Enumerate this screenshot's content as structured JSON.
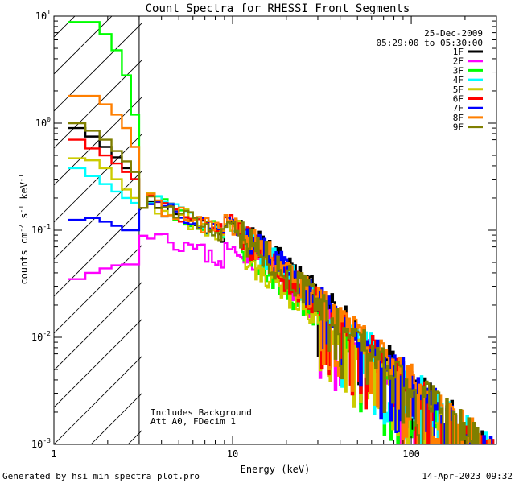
{
  "chart_data": {
    "type": "line",
    "title": "Count Spectra for RHESSI Front Segments",
    "xlabel": "Energy (keV)",
    "ylabel": "counts cm",
    "ylabel_parts": {
      "base": "counts cm",
      "e1": "-2",
      "s": " s",
      "e2": "-1",
      "kev": " keV",
      "e3": "-1"
    },
    "x_scale": "log",
    "y_scale": "log",
    "xlim": [
      1,
      300
    ],
    "ylim": [
      0.001,
      10
    ],
    "x_ticks": [
      {
        "value": 1,
        "label": "1"
      },
      {
        "value": 10,
        "label": "10"
      },
      {
        "value": 100,
        "label": "100"
      }
    ],
    "y_ticks": [
      {
        "value": 10,
        "base": "10",
        "exp": "1"
      },
      {
        "value": 1,
        "base": "10",
        "exp": "0"
      },
      {
        "value": 0.1,
        "base": "10",
        "exp": "-1"
      },
      {
        "value": 0.01,
        "base": "10",
        "exp": "-2"
      },
      {
        "value": 0.001,
        "base": "10",
        "exp": "-3"
      }
    ],
    "attenuator_threshold_keV": 3,
    "legend": {
      "date": "25-Dec-2009",
      "time_range": "05:29:00 to 05:30:00",
      "placement": "top-right"
    },
    "annotations": [
      "Includes Background",
      "Att A0, FDecim 1"
    ],
    "series": [
      {
        "name": "1F",
        "color": "#000000",
        "low": [
          0.9,
          0.75,
          0.6,
          0.48,
          0.38,
          0.3
        ],
        "tail": 1.15,
        "seed": 11
      },
      {
        "name": "2F",
        "color": "#ff00ff",
        "low": [
          0.035,
          0.04,
          0.044,
          0.047,
          0.048,
          0.048
        ],
        "tail": 0.85,
        "seed": 23
      },
      {
        "name": "3F",
        "color": "#00ff00",
        "low": [
          8.8,
          8.8,
          6.8,
          4.8,
          2.8,
          1.2
        ],
        "tail": 0.8,
        "seed": 37
      },
      {
        "name": "4F",
        "color": "#00ffff",
        "low": [
          0.38,
          0.32,
          0.27,
          0.23,
          0.2,
          0.18
        ],
        "tail": 1.05,
        "seed": 41
      },
      {
        "name": "5F",
        "color": "#cccc00",
        "low": [
          0.47,
          0.45,
          0.38,
          0.3,
          0.24,
          0.2
        ],
        "tail": 0.75,
        "seed": 53
      },
      {
        "name": "6F",
        "color": "#ff0000",
        "low": [
          0.7,
          0.58,
          0.5,
          0.42,
          0.35,
          0.3
        ],
        "tail": 1.0,
        "seed": 67
      },
      {
        "name": "7F",
        "color": "#0000ff",
        "low": [
          0.125,
          0.13,
          0.12,
          0.11,
          0.1,
          0.1
        ],
        "tail": 1.1,
        "seed": 71
      },
      {
        "name": "8F",
        "color": "#ff7f00",
        "low": [
          1.8,
          1.8,
          1.5,
          1.2,
          0.9,
          0.6
        ],
        "tail": 1.1,
        "seed": 83
      },
      {
        "name": "9F",
        "color": "#7f7f00",
        "low": [
          1.0,
          0.85,
          0.7,
          0.55,
          0.44,
          0.35
        ],
        "tail": 1.05,
        "seed": 97
      }
    ]
  },
  "footer": {
    "generated_by": "Generated by hsi_min_spectra_plot.pro",
    "timestamp": "14-Apr-2023 09:32"
  }
}
